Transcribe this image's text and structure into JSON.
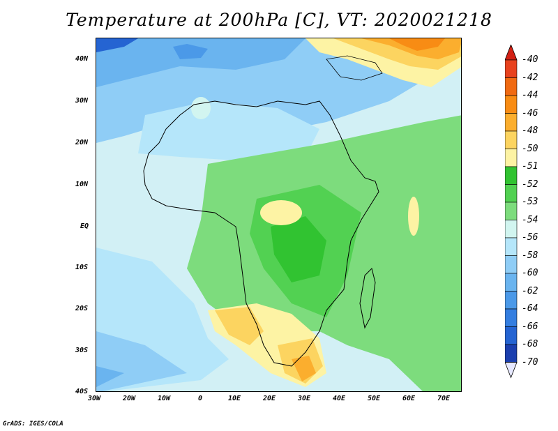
{
  "title": "Temperature at 200hPa [C], VT: 2020021218",
  "credit": "GrADS: IGES/COLA",
  "lat_labels": [
    "40N",
    "30N",
    "20N",
    "10N",
    "EQ",
    "10S",
    "20S",
    "30S",
    "40S"
  ],
  "lon_labels": [
    "30W",
    "20W",
    "10W",
    "0",
    "10E",
    "20E",
    "30E",
    "40E",
    "50E",
    "60E",
    "70E"
  ],
  "colorbar": {
    "labels": [
      "-40",
      "-42",
      "-44",
      "-46",
      "-48",
      "-50",
      "-51",
      "-52",
      "-53",
      "-54",
      "-56",
      "-58",
      "-60",
      "-62",
      "-64",
      "-66",
      "-68",
      "-70"
    ],
    "colors": [
      "#e8421e",
      "#f06a12",
      "#f88c14",
      "#fbae2e",
      "#fcd460",
      "#fdf3a4",
      "#31c331",
      "#52d152",
      "#7ddc7d",
      "#d2f5f0",
      "#b5e6fa",
      "#8fcdf6",
      "#6ab4ef",
      "#4b99e8",
      "#347ee0",
      "#2564d2",
      "#1b3fae",
      "#0d1673"
    ],
    "top_arrow_color": "#d22014",
    "bottom_arrow_color": "#e6e8ff"
  },
  "palette": {
    "land_outline": "#000000",
    "cold_ocean": "#b5e6fa",
    "warm_land": "#fbae2e"
  }
}
